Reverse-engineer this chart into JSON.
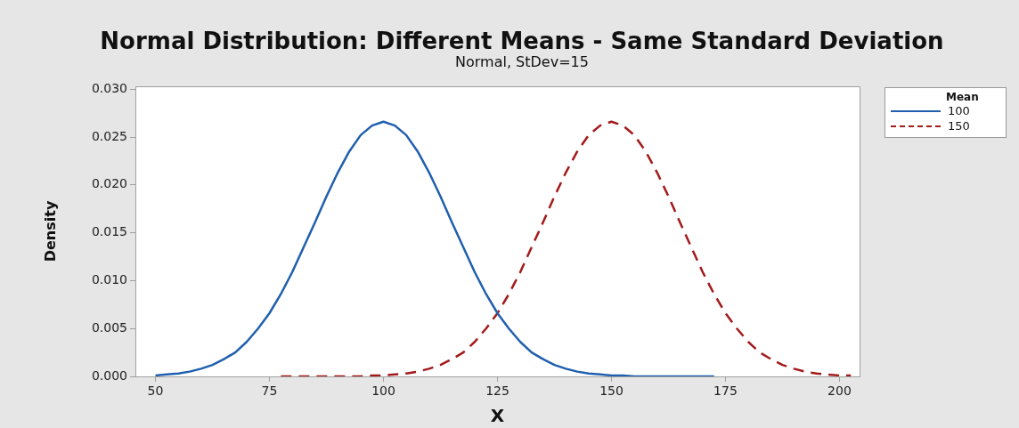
{
  "chart_data": {
    "type": "line",
    "title": "Normal Distribution: Different Means - Same Standard Deviation",
    "subtitle": "Normal, StDev=15",
    "xlabel": "X",
    "ylabel": "Density",
    "legend_title": "Mean",
    "legend": "top right",
    "grid": false,
    "marker": "none",
    "xlim": [
      45.6,
      204.4
    ],
    "xticks": [
      50,
      75,
      100,
      125,
      150,
      175,
      200
    ],
    "ylim": [
      0,
      0.0303
    ],
    "yticks": [
      {
        "value": 0,
        "label": "0.000"
      },
      {
        "value": 0.005,
        "label": "0.005"
      },
      {
        "value": 0.01,
        "label": "0.010"
      },
      {
        "value": 0.015,
        "label": "0.015"
      },
      {
        "value": 0.02,
        "label": "0.020"
      },
      {
        "value": 0.025,
        "label": "0.025"
      },
      {
        "value": 0.03,
        "label": "0.030"
      }
    ],
    "series": [
      {
        "name": "100",
        "color": "#1f5fae",
        "line_style": "solid",
        "x": [
          50,
          52.5,
          55,
          57.5,
          60,
          62.5,
          65,
          67.5,
          70,
          72.5,
          75,
          77.5,
          80,
          82.5,
          85,
          87.5,
          90,
          92.5,
          95,
          97.5,
          100,
          102.5,
          105,
          107.5,
          110,
          112.5,
          115,
          117.5,
          120,
          122.5,
          125,
          127.5,
          130,
          132.5,
          135,
          137.5,
          140,
          142.5,
          145,
          147.5,
          150,
          152.5,
          155,
          157.5,
          160,
          162.5,
          165,
          167.5,
          170,
          172.5
        ],
        "values": [
          0.0001,
          0.0002,
          0.0003,
          0.0005,
          0.0008,
          0.0012,
          0.0018,
          0.0025,
          0.0036,
          0.005,
          0.0066,
          0.0086,
          0.0109,
          0.0135,
          0.0161,
          0.0188,
          0.0213,
          0.0235,
          0.0252,
          0.0262,
          0.0266,
          0.0262,
          0.0252,
          0.0235,
          0.0213,
          0.0188,
          0.0161,
          0.0135,
          0.0109,
          0.0086,
          0.0066,
          0.005,
          0.0036,
          0.0025,
          0.0018,
          0.0012,
          0.0008,
          0.0005,
          0.0003,
          0.0002,
          0.0001,
          0.0001,
          0,
          0,
          0,
          0,
          0,
          0,
          0,
          0
        ]
      },
      {
        "name": "150",
        "color": "#a31a1a",
        "line_style": "dashed",
        "x": [
          77.5,
          80,
          82.5,
          85,
          87.5,
          90,
          92.5,
          95,
          97.5,
          100,
          102.5,
          105,
          107.5,
          110,
          112.5,
          115,
          117.5,
          120,
          122.5,
          125,
          127.5,
          130,
          132.5,
          135,
          137.5,
          140,
          142.5,
          145,
          147.5,
          150,
          152.5,
          155,
          157.5,
          160,
          162.5,
          165,
          167.5,
          170,
          172.5,
          175,
          177.5,
          180,
          182.5,
          185,
          187.5,
          190,
          192.5,
          195,
          197.5,
          200,
          202.5
        ],
        "values": [
          0,
          0,
          0,
          0,
          0,
          0,
          0,
          0,
          0.0001,
          0.0001,
          0.0002,
          0.0003,
          0.0005,
          0.0008,
          0.0012,
          0.0018,
          0.0025,
          0.0036,
          0.005,
          0.0066,
          0.0086,
          0.0109,
          0.0135,
          0.0161,
          0.0188,
          0.0213,
          0.0235,
          0.0252,
          0.0262,
          0.0266,
          0.0262,
          0.0252,
          0.0235,
          0.0213,
          0.0188,
          0.0161,
          0.0135,
          0.0109,
          0.0086,
          0.0066,
          0.005,
          0.0036,
          0.0025,
          0.0018,
          0.0012,
          0.0008,
          0.0005,
          0.0003,
          0.0002,
          0.0001,
          0.0001
        ]
      }
    ]
  }
}
